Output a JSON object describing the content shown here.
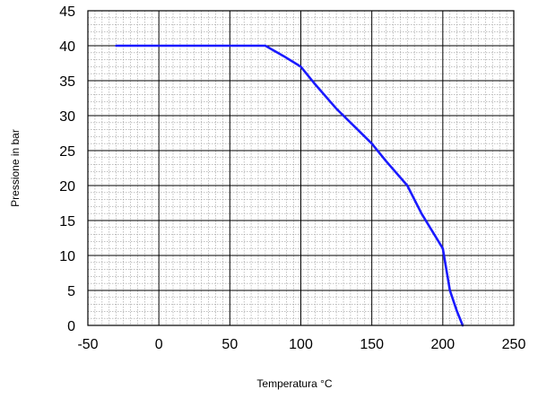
{
  "chart_data": {
    "type": "line",
    "title": "",
    "xlabel": "Temperatura °C",
    "ylabel": "Pressione in bar",
    "xlim": [
      -50,
      250
    ],
    "ylim": [
      0,
      45
    ],
    "x_ticks": [
      -50,
      0,
      50,
      100,
      150,
      200,
      250
    ],
    "y_ticks": [
      0,
      5,
      10,
      15,
      20,
      25,
      30,
      35,
      40,
      45
    ],
    "x_tick_labels": [
      "-50",
      "0",
      "50",
      "100",
      "150",
      "200",
      "250"
    ],
    "y_tick_labels": [
      "0",
      "5",
      "10",
      "15",
      "20",
      "25",
      "30",
      "35",
      "40",
      "45"
    ],
    "grid": true,
    "series": [
      {
        "color": "#1a1aff",
        "x": [
          -30,
          75,
          88,
          100,
          110,
          125,
          140,
          150,
          160,
          175,
          185,
          200,
          205,
          210,
          214
        ],
        "y": [
          40,
          40,
          38.5,
          37,
          34.5,
          31,
          28,
          26,
          23.5,
          20,
          16,
          11,
          5,
          2,
          0
        ]
      }
    ]
  }
}
